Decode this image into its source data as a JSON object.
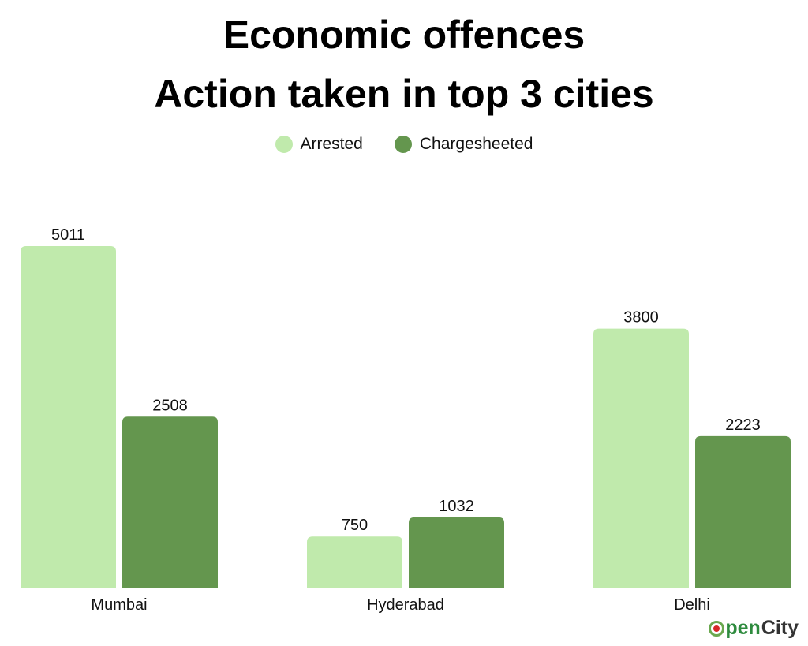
{
  "header": {
    "title_line1": "Economic offences",
    "title_line2": "Action taken in top 3 cities"
  },
  "legend": {
    "items": [
      {
        "label": "Arrested",
        "color": "#c0eaac"
      },
      {
        "label": "Chargesheeted",
        "color": "#64964e"
      }
    ],
    "placement": "top-center"
  },
  "branding": {
    "logo_icon": "opencity-logo-icon",
    "logo_part1": "pen",
    "logo_part2": "City"
  },
  "chart_data": {
    "type": "bar",
    "title": "Economic offences\nAction taken in top 3 cities",
    "xlabel": "",
    "ylabel": "",
    "categories": [
      "Mumbai",
      "Hyderabad",
      "Delhi"
    ],
    "series": [
      {
        "name": "Arrested",
        "values": [
          5011,
          750,
          3800
        ],
        "color": "#c0eaac"
      },
      {
        "name": "Chargesheeted",
        "values": [
          2508,
          1032,
          2223
        ],
        "color": "#64964e"
      }
    ],
    "ylim": [
      0,
      5011
    ],
    "grid": false,
    "data_labels": true
  }
}
